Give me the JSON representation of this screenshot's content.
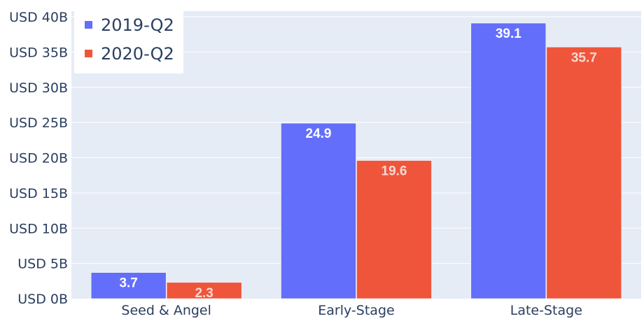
{
  "chart_data": {
    "type": "bar",
    "categories": [
      "Seed & Angel",
      "Early-Stage",
      "Late-Stage"
    ],
    "series": [
      {
        "name": "2019-Q2",
        "values": [
          3.7,
          24.9,
          39.1
        ],
        "color": "#636efa",
        "label_color": "#ffffff"
      },
      {
        "name": "2020-Q2",
        "values": [
          2.3,
          19.6,
          35.7
        ],
        "color": "#ef553b",
        "label_color": "#f7d9d2"
      }
    ],
    "y_tick_labels": [
      "USD 0B",
      "USD 5B",
      "USD 10B",
      "USD 15B",
      "USD 20B",
      "USD 25B",
      "USD 30B",
      "USD 35B",
      "USD 40B"
    ],
    "y_ticks": [
      0,
      5,
      10,
      15,
      20,
      25,
      30,
      35,
      40
    ],
    "ylim": [
      0,
      40
    ],
    "title": "",
    "xlabel": "",
    "ylabel": "",
    "grid": true,
    "legend_position": "top-left",
    "plot_background": "#e5ecf6",
    "grid_color": "#ffffff",
    "text_color": "#2a3f5f"
  }
}
